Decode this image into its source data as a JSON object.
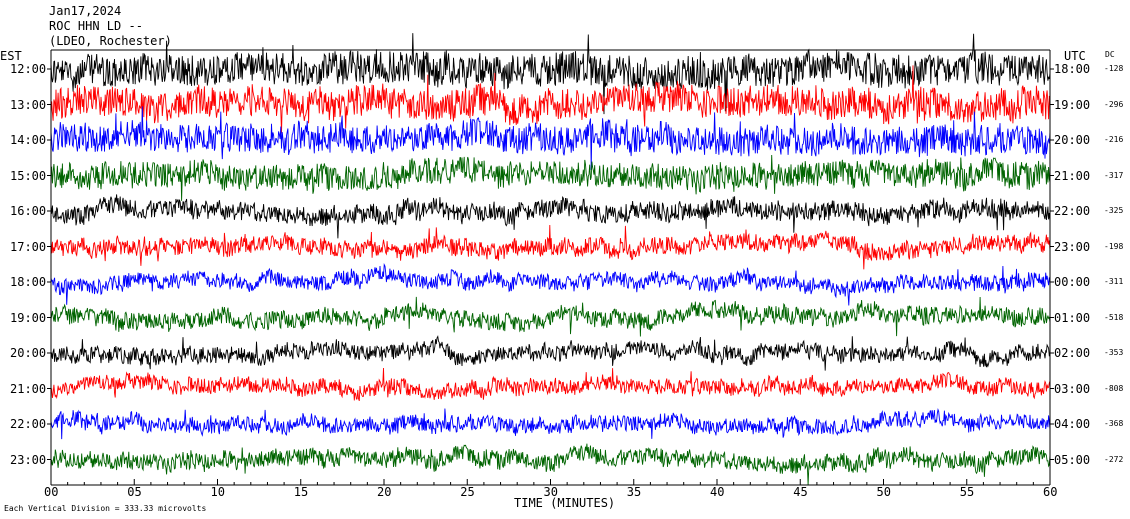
{
  "header": {
    "date": "Jan17,2024",
    "station": "ROC HHN LD --",
    "network": "(LDEO, Rochester)"
  },
  "left_axis_title": "EST",
  "right_axis_title": "UTC",
  "dc_title": "DC",
  "footer_note": "Each Vertical Division = 333.33 microvolts",
  "chart_data": {
    "type": "line",
    "title": "Jan17,2024 ROC HHN LD -- (LDEO, Rochester)",
    "xlabel": "TIME (MINUTES)",
    "xlim": [
      0,
      60
    ],
    "x_ticks": [
      "00",
      "05",
      "10",
      "15",
      "20",
      "25",
      "30",
      "35",
      "40",
      "45",
      "50",
      "55",
      "60"
    ],
    "grid": false,
    "colors": [
      "#000000",
      "#ff0000",
      "#0000ff",
      "#006400"
    ],
    "rows": [
      {
        "est": "12:00",
        "utc": "18:00",
        "dc": "-128",
        "color": "#000000",
        "amplitude": 0.95
      },
      {
        "est": "13:00",
        "utc": "19:00",
        "dc": "-296",
        "color": "#ff0000",
        "amplitude": 0.9
      },
      {
        "est": "14:00",
        "utc": "20:00",
        "dc": "-216",
        "color": "#0000ff",
        "amplitude": 0.85
      },
      {
        "est": "15:00",
        "utc": "21:00",
        "dc": "-317",
        "color": "#006400",
        "amplitude": 0.75
      },
      {
        "est": "16:00",
        "utc": "22:00",
        "dc": "-325",
        "color": "#000000",
        "amplitude": 0.55
      },
      {
        "est": "17:00",
        "utc": "23:00",
        "dc": "-198",
        "color": "#ff0000",
        "amplitude": 0.5
      },
      {
        "est": "18:00",
        "utc": "00:00",
        "dc": "-311",
        "color": "#0000ff",
        "amplitude": 0.45
      },
      {
        "est": "19:00",
        "utc": "01:00",
        "dc": "-518",
        "color": "#006400",
        "amplitude": 0.5
      },
      {
        "est": "20:00",
        "utc": "02:00",
        "dc": "-353",
        "color": "#000000",
        "amplitude": 0.45
      },
      {
        "est": "21:00",
        "utc": "03:00",
        "dc": "-808",
        "color": "#ff0000",
        "amplitude": 0.45
      },
      {
        "est": "22:00",
        "utc": "04:00",
        "dc": "-368",
        "color": "#0000ff",
        "amplitude": 0.45
      },
      {
        "est": "23:00",
        "utc": "05:00",
        "dc": "-272",
        "color": "#006400",
        "amplitude": 0.5
      }
    ]
  }
}
